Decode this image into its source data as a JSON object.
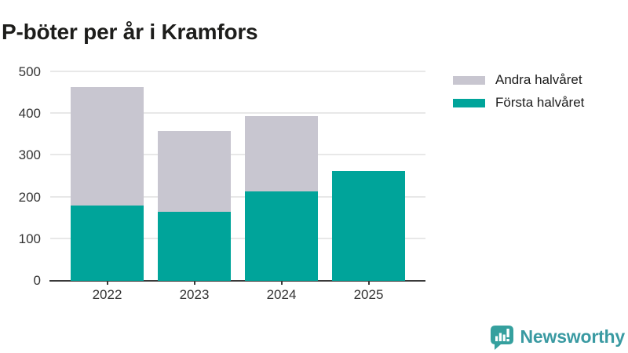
{
  "title": "P-böter per år i Kramfors",
  "colors": {
    "first_half": "#00a49a",
    "second_half": "#c8c6d0",
    "grid": "#e8e8e8",
    "axis": "#3a3a3a",
    "tick_label": "#333333",
    "title": "#1d1d1b",
    "brand": "#3a9aa2"
  },
  "legend": [
    {
      "label": "Andra halvåret",
      "color": "#c8c6d0"
    },
    {
      "label": "Första halvåret",
      "color": "#00a49a"
    }
  ],
  "chart_data": {
    "type": "bar",
    "stacked": true,
    "title": "P-böter per år i Kramfors",
    "categories": [
      "2022",
      "2023",
      "2024",
      "2025"
    ],
    "series": [
      {
        "name": "Första halvåret",
        "color": "#00a49a",
        "values": [
          180,
          165,
          215,
          263
        ]
      },
      {
        "name": "Andra halvåret",
        "color": "#c8c6d0",
        "values": [
          285,
          194,
          179,
          0
        ]
      }
    ],
    "totals": [
      465,
      359,
      394,
      263
    ],
    "xlabel": "",
    "ylabel": "",
    "ylim": [
      0,
      500
    ],
    "yticks": [
      0,
      100,
      200,
      300,
      400,
      500
    ],
    "grid": true,
    "legend_position": "top-right"
  },
  "footer": {
    "brand": "Newsworthy",
    "logo_icon": "bar-chart-speech-bubble-icon"
  }
}
